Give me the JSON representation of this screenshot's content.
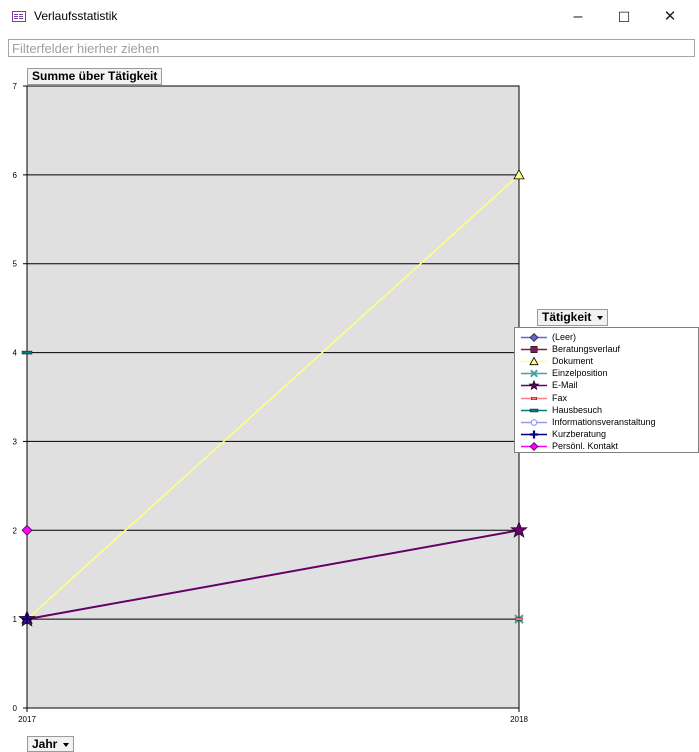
{
  "window": {
    "title": "Verlaufsstatistik",
    "minimize_glyph": "–",
    "maximize_glyph": "☐",
    "close_glyph": "✕"
  },
  "filter": {
    "placeholder": "Filterfelder hierher ziehen"
  },
  "data_field": {
    "label": "Summe über Tätigkeit"
  },
  "series_field": {
    "label": "Tätigkeit"
  },
  "category_field": {
    "label": "Jahr"
  },
  "colors": {
    "plot_background": "#e0e0e0",
    "gridline": "#000000"
  },
  "chart_data": {
    "type": "line",
    "title": "Summe über Tätigkeit",
    "categories": [
      "2017",
      "2018"
    ],
    "ylim": [
      0,
      7
    ],
    "yticks": [
      0,
      1,
      2,
      3,
      4,
      5,
      6,
      7
    ],
    "grid": true,
    "legend_title": "Tätigkeit",
    "legend_position": "right",
    "series": [
      {
        "name": "(Leer)",
        "values": [
          null,
          null
        ],
        "color": "#6666cc",
        "marker": "diamond"
      },
      {
        "name": "Beratungsverlauf",
        "values": [
          null,
          null
        ],
        "color": "#7f1f4f",
        "marker": "square"
      },
      {
        "name": "Dokument",
        "values": [
          1,
          6
        ],
        "color": "#ffff80",
        "marker": "triangle"
      },
      {
        "name": "Einzelposition",
        "values": [
          null,
          1
        ],
        "color": "#4aa0a0",
        "marker": "x"
      },
      {
        "name": "E-Mail",
        "values": [
          1,
          2
        ],
        "color": "#660066",
        "marker": "star"
      },
      {
        "name": "Fax",
        "values": [
          null,
          1
        ],
        "color": "#ff7f7f",
        "marker": "dash"
      },
      {
        "name": "Hausbesuch",
        "values": [
          4,
          null
        ],
        "color": "#007f7f",
        "marker": "bar"
      },
      {
        "name": "Informationsveranstaltung",
        "values": [
          null,
          null
        ],
        "color": "#9999e6",
        "marker": "circle"
      },
      {
        "name": "Kurzberatung",
        "values": [
          1,
          null
        ],
        "color": "#000080",
        "marker": "plus"
      },
      {
        "name": "Persönl. Kontakt",
        "values": [
          2,
          null
        ],
        "color": "#ff00ff",
        "marker": "diamond"
      }
    ]
  }
}
